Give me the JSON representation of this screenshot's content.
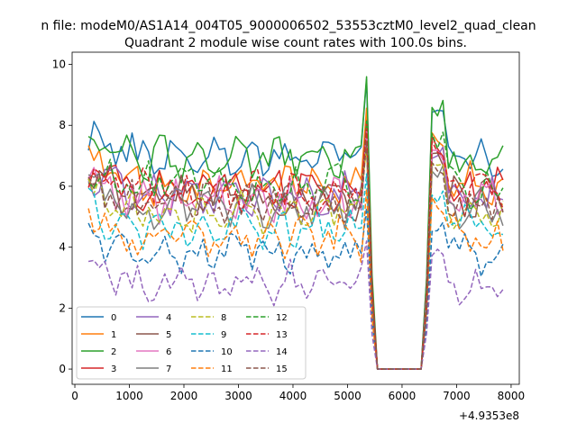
{
  "figure": {
    "suptitle": "n file: modeM0/AS1A14_004T05_9000006502_53553cztM0_level2_quad_clean",
    "title": "Quadrant 2 module wise count rates with 100.0s bins.",
    "offset_label": "+4.9353e8"
  },
  "chart_data": {
    "type": "line",
    "title": "Quadrant 2 module wise count rates with 100.0s bins.",
    "xlabel": "",
    "ylabel": "",
    "x_offset": 493530000,
    "xlim": [
      -50,
      8150
    ],
    "ylim": [
      -0.5,
      10.4
    ],
    "xticks": [
      0,
      1000,
      2000,
      3000,
      4000,
      5000,
      6000,
      7000,
      8000
    ],
    "yticks": [
      0,
      2,
      4,
      6,
      8,
      10
    ],
    "grid": false,
    "legend_loc": "lower left",
    "legend_ncol": 4,
    "x_data_range": [
      250,
      7850
    ],
    "gap_region": [
      5550,
      6350
    ],
    "series": [
      {
        "name": "0",
        "color": "#1f77b4",
        "dash": "solid",
        "level": 7.0
      },
      {
        "name": "1",
        "color": "#ff7f0e",
        "dash": "solid",
        "level": 6.1
      },
      {
        "name": "2",
        "color": "#2ca02c",
        "dash": "solid",
        "level": 6.9
      },
      {
        "name": "3",
        "color": "#d62728",
        "dash": "solid",
        "level": 5.9
      },
      {
        "name": "4",
        "color": "#9467bd",
        "dash": "solid",
        "level": 5.7
      },
      {
        "name": "5",
        "color": "#8c564b",
        "dash": "solid",
        "level": 5.6
      },
      {
        "name": "6",
        "color": "#e377c2",
        "dash": "solid",
        "level": 5.6
      },
      {
        "name": "7",
        "color": "#7f7f7f",
        "dash": "solid",
        "level": 5.3
      },
      {
        "name": "8",
        "color": "#bcbd22",
        "dash": "dashed",
        "level": 5.2
      },
      {
        "name": "9",
        "color": "#17becf",
        "dash": "dashed",
        "level": 4.6
      },
      {
        "name": "10",
        "color": "#1f77b4",
        "dash": "dashed",
        "level": 3.8
      },
      {
        "name": "11",
        "color": "#ff7f0e",
        "dash": "dashed",
        "level": 4.3
      },
      {
        "name": "12",
        "color": "#2ca02c",
        "dash": "dashed",
        "level": 6.0
      },
      {
        "name": "13",
        "color": "#d62728",
        "dash": "dashed",
        "level": 5.8
      },
      {
        "name": "14",
        "color": "#9467bd",
        "dash": "dashed",
        "level": 2.8
      },
      {
        "name": "15",
        "color": "#8c564b",
        "dash": "dashed",
        "level": 5.4
      }
    ]
  }
}
